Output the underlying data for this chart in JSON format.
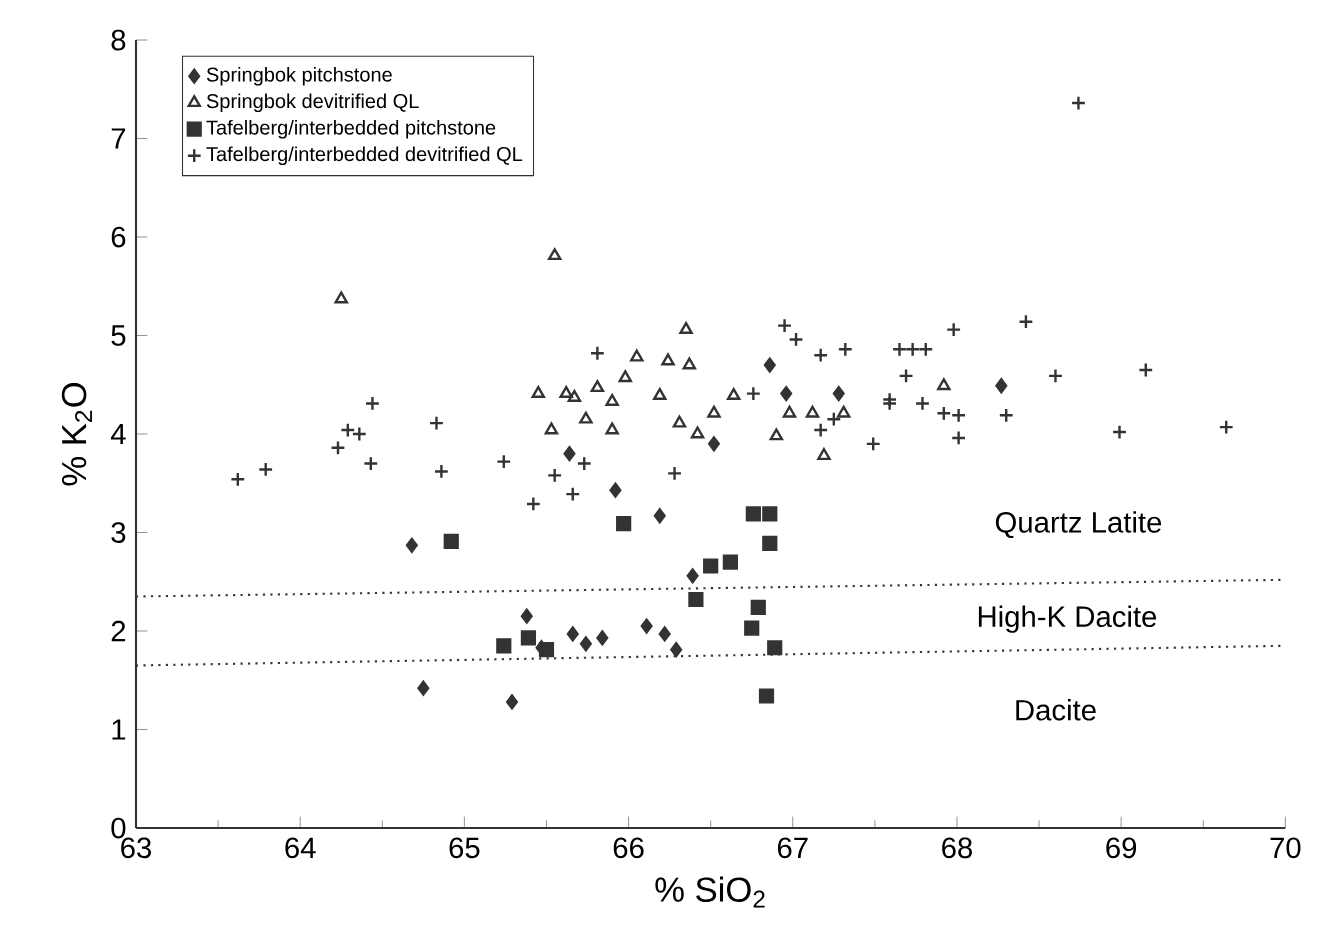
{
  "chart_data": {
    "type": "scatter",
    "xlabel": "% SiO$_{2}$",
    "ylabel": "% K$_{2}$O",
    "xlim": [
      63,
      70
    ],
    "ylim": [
      0,
      8
    ],
    "xticks": [
      63,
      64,
      65,
      66,
      67,
      68,
      69,
      70
    ],
    "yticks": [
      0,
      1,
      2,
      3,
      4,
      5,
      6,
      7,
      8
    ],
    "legend": "top left",
    "grid": false,
    "series": [
      {
        "name": "Springbok pitchstone",
        "color": "#333333",
        "marker": "diamond",
        "x": [
          64.68,
          64.75,
          65.29,
          65.38,
          65.47,
          65.66,
          65.74,
          65.84,
          65.92,
          66.11,
          66.19,
          66.22,
          66.29,
          66.39,
          66.52,
          65.64,
          66.86,
          66.96,
          67.28,
          68.27
        ],
        "values": [
          2.87,
          1.42,
          1.28,
          2.15,
          1.83,
          1.97,
          1.87,
          1.93,
          3.43,
          2.05,
          3.17,
          1.97,
          1.81,
          2.56,
          3.9,
          3.8,
          4.7,
          4.41,
          4.41,
          4.49
        ]
      },
      {
        "name": "Springbok devitrified QL",
        "color": "#333333",
        "marker": "triangle",
        "x": [
          64.25,
          65.55,
          65.45,
          65.53,
          65.62,
          65.67,
          65.74,
          65.81,
          65.9,
          65.9,
          65.98,
          66.05,
          66.19,
          66.24,
          66.35,
          66.37,
          66.31,
          66.42,
          66.52,
          66.64,
          66.9,
          66.98,
          67.12,
          67.19,
          67.31,
          67.92
        ],
        "values": [
          5.37,
          5.81,
          4.41,
          4.04,
          4.41,
          4.37,
          4.15,
          4.47,
          4.33,
          4.04,
          4.57,
          4.78,
          4.39,
          4.74,
          5.06,
          4.7,
          4.11,
          4.0,
          4.21,
          4.39,
          3.98,
          4.21,
          4.21,
          3.78,
          4.21,
          4.49
        ]
      },
      {
        "name": "Tafelberg/interbedded pitchstone",
        "color": "#333333",
        "marker": "square",
        "x": [
          64.92,
          65.24,
          65.39,
          65.5,
          65.97,
          66.41,
          66.5,
          66.62,
          66.76,
          66.86,
          66.86,
          66.79,
          66.75,
          66.89,
          66.84
        ],
        "values": [
          2.91,
          1.85,
          1.93,
          1.81,
          3.09,
          2.32,
          2.66,
          2.7,
          3.19,
          3.19,
          2.89,
          2.24,
          2.03,
          1.83,
          1.34
        ]
      },
      {
        "name": "Tafelberg/interbedded devitrified QL",
        "color": "#333333",
        "marker": "cross",
        "x": [
          63.62,
          63.79,
          64.23,
          64.29,
          64.36,
          64.44,
          64.43,
          64.83,
          64.86,
          65.24,
          65.42,
          65.55,
          65.66,
          65.73,
          65.81,
          66.28,
          66.95,
          67.02,
          67.32,
          67.17,
          66.76,
          67.49,
          67.59,
          67.65,
          67.69,
          67.25,
          67.17,
          68.74,
          67.98,
          68.42,
          67.73,
          67.81,
          67.59,
          67.79,
          67.92,
          68.01,
          68.01,
          68.3,
          68.6,
          69.15,
          68.99,
          69.64
        ],
        "values": [
          3.54,
          3.64,
          3.86,
          4.04,
          4.0,
          4.31,
          3.7,
          4.11,
          3.62,
          3.72,
          3.29,
          3.58,
          3.39,
          3.7,
          4.82,
          3.6,
          5.1,
          4.96,
          4.86,
          4.8,
          4.41,
          3.9,
          4.35,
          4.86,
          4.59,
          4.15,
          4.04,
          7.36,
          5.06,
          5.14,
          4.86,
          4.86,
          4.31,
          4.31,
          4.21,
          4.19,
          3.96,
          4.19,
          4.59,
          4.65,
          4.02,
          4.07
        ]
      },
      {
        "type": "line",
        "color": "#333333",
        "line_style": "dotted",
        "x": [
          63,
          70
        ],
        "values": [
          2.35,
          2.52
        ]
      },
      {
        "type": "line",
        "color": "#333333",
        "line_style": "dotted",
        "x": [
          63,
          70
        ],
        "values": [
          1.65,
          1.85
        ]
      }
    ],
    "annotations": [
      "Quartz Latite",
      "High-K Dacite",
      "Dacite"
    ]
  }
}
